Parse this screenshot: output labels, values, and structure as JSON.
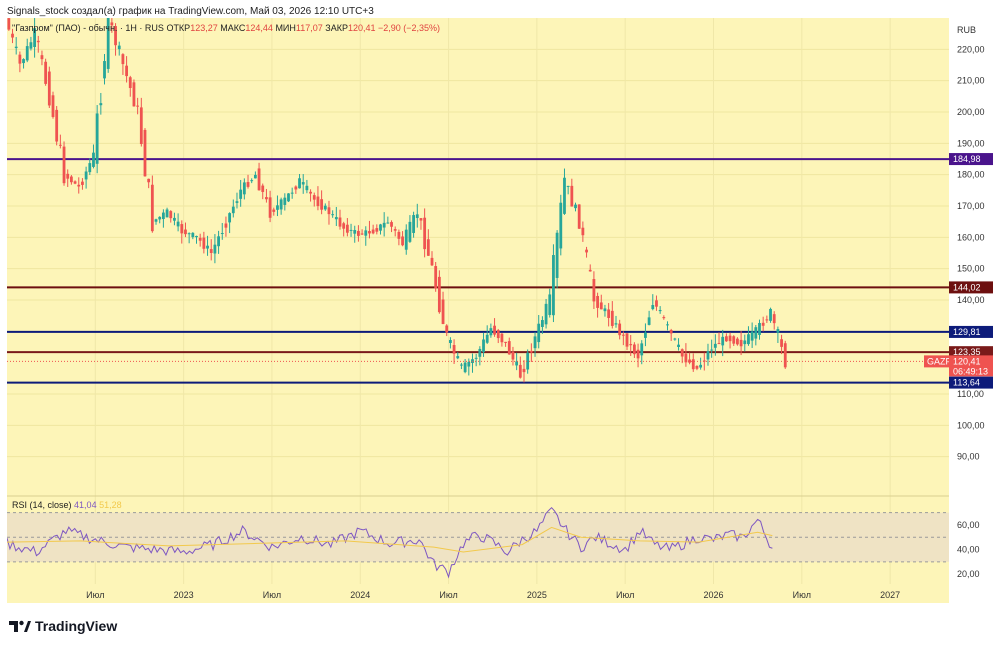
{
  "header_text": "Signals_stock создал(а) график на TradingView.com, Май 03, 2026 12:10 UTC+3",
  "legend": {
    "symbol": "\"Газпром\" (ПАО) - обычн. · 1H · RUS",
    "open_label": "ОТКР",
    "open": "123,27",
    "high_label": "МАКС",
    "high": "124,44",
    "low_label": "МИН",
    "low": "117,07",
    "close_label": "ЗАКР",
    "close": "120,41",
    "change": "−2,90 (−2,35%)"
  },
  "currency": "RUB",
  "rsi_legend": {
    "label": "RSI (14, close)",
    "rsi": "41,04",
    "ma": "51,28"
  },
  "footer": {
    "brand": "TradingView"
  },
  "tags": {
    "symbol": "GAZP",
    "last_price": "120,41",
    "countdown": "06:49:13"
  },
  "colors": {
    "background": "#fdf5b8",
    "up": "#26a69a",
    "down": "#ef5350",
    "line_purple": "#4a148c",
    "line_maroon": "#6d0f0f",
    "line_navy": "#0d1b7a",
    "line_darkred": "#7a1a1a",
    "rsi": "#7e57c2",
    "rsi_ma": "#f2c94c"
  },
  "chart_data": [
    {
      "type": "candlestick",
      "title": "\"Газпром\" (ПАО) - обычн. · 1H · RUS",
      "y_axis": {
        "ticks": [
          "220,00",
          "210,00",
          "200,00",
          "190,00",
          "180,00",
          "170,00",
          "160,00",
          "150,00",
          "140,00",
          "130,00",
          "110,00",
          "100,00",
          "90,00"
        ],
        "tick_values": [
          220,
          210,
          200,
          190,
          180,
          170,
          160,
          150,
          140,
          130,
          110,
          100,
          90
        ],
        "range": [
          80,
          230
        ]
      },
      "x_axis": {
        "tick_labels": [
          "Июл",
          "2023",
          "Июл",
          "2024",
          "Июл",
          "2025",
          "Июл",
          "2026",
          "Июл",
          "2027"
        ],
        "tick_dates": [
          "2022-07",
          "2023-01",
          "2023-07",
          "2024-01",
          "2024-07",
          "2025-01",
          "2025-07",
          "2026-01",
          "2026-07",
          "2027-01"
        ],
        "range": [
          "2022-01",
          "2027-05"
        ]
      },
      "horizontal_levels": [
        {
          "value": 184.98,
          "label": "184,98",
          "color": "#4a148c"
        },
        {
          "value": 144.02,
          "label": "144,02",
          "color": "#6d0f0f"
        },
        {
          "value": 129.81,
          "label": "129,81",
          "color": "#0d1b7a"
        },
        {
          "value": 123.35,
          "label": "123,35",
          "color": "#7a1a1a"
        },
        {
          "value": 113.64,
          "label": "113,64",
          "color": "#0d1b7a"
        }
      ],
      "price_path": [
        [
          "2022-01",
          230,
          215
        ],
        [
          "2022-02",
          215,
          225
        ],
        [
          "2022-03",
          225,
          205
        ],
        [
          "2022-04",
          205,
          180
        ],
        [
          "2022-05",
          180,
          176
        ],
        [
          "2022-06",
          176,
          186
        ],
        [
          "2022-07",
          186,
          230
        ],
        [
          "2022-08",
          230,
          215
        ],
        [
          "2022-09",
          215,
          200
        ],
        [
          "2022-10",
          200,
          165
        ],
        [
          "2022-11",
          165,
          168
        ],
        [
          "2022-12",
          168,
          162
        ],
        [
          "2023-01",
          162,
          160
        ],
        [
          "2023-02",
          160,
          155
        ],
        [
          "2023-03",
          155,
          165
        ],
        [
          "2023-04",
          165,
          175
        ],
        [
          "2023-05",
          175,
          180
        ],
        [
          "2023-06",
          180,
          168
        ],
        [
          "2023-07",
          168,
          172
        ],
        [
          "2023-08",
          172,
          178
        ],
        [
          "2023-09",
          178,
          172
        ],
        [
          "2023-10",
          172,
          168
        ],
        [
          "2023-11",
          168,
          163
        ],
        [
          "2023-12",
          163,
          161
        ],
        [
          "2024-01",
          161,
          162
        ],
        [
          "2024-02",
          162,
          165
        ],
        [
          "2024-03",
          165,
          158
        ],
        [
          "2024-04",
          158,
          168
        ],
        [
          "2024-05",
          168,
          150
        ],
        [
          "2024-06",
          150,
          128
        ],
        [
          "2024-07",
          128,
          118
        ],
        [
          "2024-08",
          118,
          122
        ],
        [
          "2024-09",
          122,
          131
        ],
        [
          "2024-10",
          131,
          126
        ],
        [
          "2024-11",
          126,
          116
        ],
        [
          "2024-12",
          116,
          128
        ],
        [
          "2025-01",
          128,
          140
        ],
        [
          "2025-02",
          140,
          178
        ],
        [
          "2025-03",
          178,
          165
        ],
        [
          "2025-04",
          165,
          140
        ],
        [
          "2025-05",
          140,
          135
        ],
        [
          "2025-06",
          135,
          128
        ],
        [
          "2025-07",
          128,
          122
        ],
        [
          "2025-08",
          122,
          140
        ],
        [
          "2025-09",
          140,
          131
        ],
        [
          "2025-10",
          131,
          122
        ],
        [
          "2025-11",
          122,
          118
        ],
        [
          "2025-12",
          118,
          125
        ],
        [
          "2026-01",
          125,
          128
        ],
        [
          "2026-02",
          128,
          126
        ],
        [
          "2026-03",
          126,
          130
        ],
        [
          "2026-04",
          130,
          136
        ],
        [
          "2026-05",
          136,
          120.41
        ]
      ]
    },
    {
      "type": "line",
      "title": "RSI (14, close)",
      "y_axis": {
        "ticks": [
          "60,00",
          "40,00",
          "20,00"
        ],
        "tick_values": [
          60,
          40,
          20
        ],
        "range": [
          12,
          77
        ]
      },
      "bands": [
        70,
        50,
        30
      ],
      "series": [
        {
          "name": "RSI",
          "color": "#7e57c2"
        },
        {
          "name": "MA",
          "color": "#f2c94c"
        }
      ],
      "rsi_path": [
        [
          "2022-01",
          45
        ],
        [
          "2022-03",
          38
        ],
        [
          "2022-05",
          55
        ],
        [
          "2022-07",
          48
        ],
        [
          "2022-09",
          42
        ],
        [
          "2022-11",
          40
        ],
        [
          "2023-01",
          38
        ],
        [
          "2023-03",
          44
        ],
        [
          "2023-05",
          55
        ],
        [
          "2023-07",
          42
        ],
        [
          "2023-09",
          50
        ],
        [
          "2023-11",
          44
        ],
        [
          "2024-01",
          55
        ],
        [
          "2024-03",
          45
        ],
        [
          "2024-05",
          48
        ],
        [
          "2024-06",
          28
        ],
        [
          "2024-07",
          22
        ],
        [
          "2024-08",
          45
        ],
        [
          "2024-09",
          52
        ],
        [
          "2024-10",
          46
        ],
        [
          "2024-11",
          38
        ],
        [
          "2024-12",
          48
        ],
        [
          "2025-01",
          55
        ],
        [
          "2025-02",
          72
        ],
        [
          "2025-03",
          55
        ],
        [
          "2025-04",
          42
        ],
        [
          "2025-05",
          50
        ],
        [
          "2025-06",
          45
        ],
        [
          "2025-07",
          40
        ],
        [
          "2025-08",
          55
        ],
        [
          "2025-09",
          44
        ],
        [
          "2025-10",
          40
        ],
        [
          "2025-11",
          45
        ],
        [
          "2025-12",
          50
        ],
        [
          "2026-01",
          48
        ],
        [
          "2026-02",
          52
        ],
        [
          "2026-03",
          50
        ],
        [
          "2026-04",
          64
        ],
        [
          "2026-05",
          41.04
        ]
      ],
      "ma_path": [
        [
          "2022-01",
          46
        ],
        [
          "2022-06",
          47
        ],
        [
          "2022-12",
          43
        ],
        [
          "2023-06",
          45
        ],
        [
          "2023-12",
          47
        ],
        [
          "2024-06",
          42
        ],
        [
          "2024-08",
          38
        ],
        [
          "2024-12",
          44
        ],
        [
          "2025-02",
          58
        ],
        [
          "2025-04",
          50
        ],
        [
          "2025-08",
          47
        ],
        [
          "2025-12",
          46
        ],
        [
          "2026-04",
          54
        ],
        [
          "2026-05",
          51.28
        ]
      ]
    }
  ]
}
